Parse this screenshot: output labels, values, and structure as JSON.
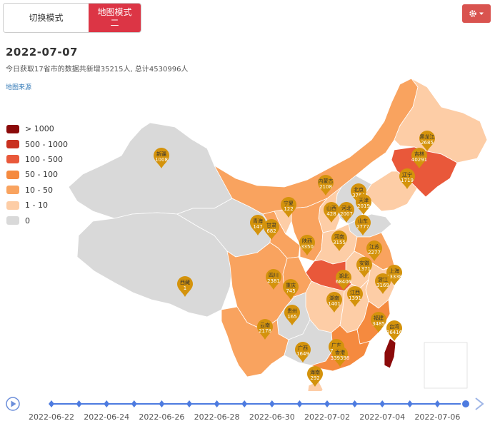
{
  "toolbar": {
    "toggle_label": "切换模式",
    "map_mode_label": "地图模式\n二",
    "settings_icon": "gear-icon"
  },
  "header": {
    "date": "2022-07-07",
    "summary": "今日获取17省市的数据共新增35215人, 总计4530996人",
    "source_link": "地图来源"
  },
  "legend": [
    {
      "label": "> 1000",
      "color": "#8b0a0a"
    },
    {
      "label": "500 - 1000",
      "color": "#c9301f"
    },
    {
      "label": "100 - 500",
      "color": "#e9583a"
    },
    {
      "label": "50 - 100",
      "color": "#f58a3f"
    },
    {
      "label": "10 - 50",
      "color": "#f9a35f"
    },
    {
      "label": "1 - 10",
      "color": "#fdcda6"
    },
    {
      "label": "0",
      "color": "#d9d9d9"
    }
  ],
  "provinces": [
    {
      "name": "新疆",
      "value": "1008"
    },
    {
      "name": "西藏",
      "value": "1"
    },
    {
      "name": "青海",
      "value": "147"
    },
    {
      "name": "甘肃",
      "value": "682"
    },
    {
      "name": "宁夏",
      "value": "122"
    },
    {
      "name": "内蒙古",
      "value": "2108"
    },
    {
      "name": "黑龙江",
      "value": "2685"
    },
    {
      "name": "吉林",
      "value": "40291"
    },
    {
      "name": "辽宁",
      "value": "1719"
    },
    {
      "name": "北京",
      "value": "3764"
    },
    {
      "name": "天津",
      "value": "2019"
    },
    {
      "name": "河北",
      "value": "2007"
    },
    {
      "name": "山西",
      "value": "428"
    },
    {
      "name": "山东",
      "value": "2777"
    },
    {
      "name": "陕西",
      "value": "3350"
    },
    {
      "name": "河南",
      "value": "3155"
    },
    {
      "name": "江苏",
      "value": "2277"
    },
    {
      "name": "安徽",
      "value": "1371"
    },
    {
      "name": "上海",
      "value": "63338"
    },
    {
      "name": "浙江",
      "value": "3169"
    },
    {
      "name": "湖北",
      "value": "68406"
    },
    {
      "name": "四川",
      "value": "2381"
    },
    {
      "name": "重庆",
      "value": "745"
    },
    {
      "name": "湖南",
      "value": "1401"
    },
    {
      "name": "江西",
      "value": "1391"
    },
    {
      "name": "福建",
      "value": "3485"
    },
    {
      "name": "台湾",
      "value": "3964168"
    },
    {
      "name": "贵州",
      "value": "165"
    },
    {
      "name": "云南",
      "value": "2178"
    },
    {
      "name": "广西",
      "value": "1649"
    },
    {
      "name": "广东",
      "value": "7909"
    },
    {
      "name": "香港",
      "value": "339398"
    },
    {
      "name": "海南",
      "value": "292"
    }
  ],
  "timeline": {
    "labels": [
      "2022-06-22",
      "2022-06-24",
      "2022-06-26",
      "2022-06-28",
      "2022-06-30",
      "2022-07-02",
      "2022-07-04",
      "2022-07-06"
    ],
    "play_icon": "play-icon",
    "next_icon": "chevron-right-icon"
  }
}
